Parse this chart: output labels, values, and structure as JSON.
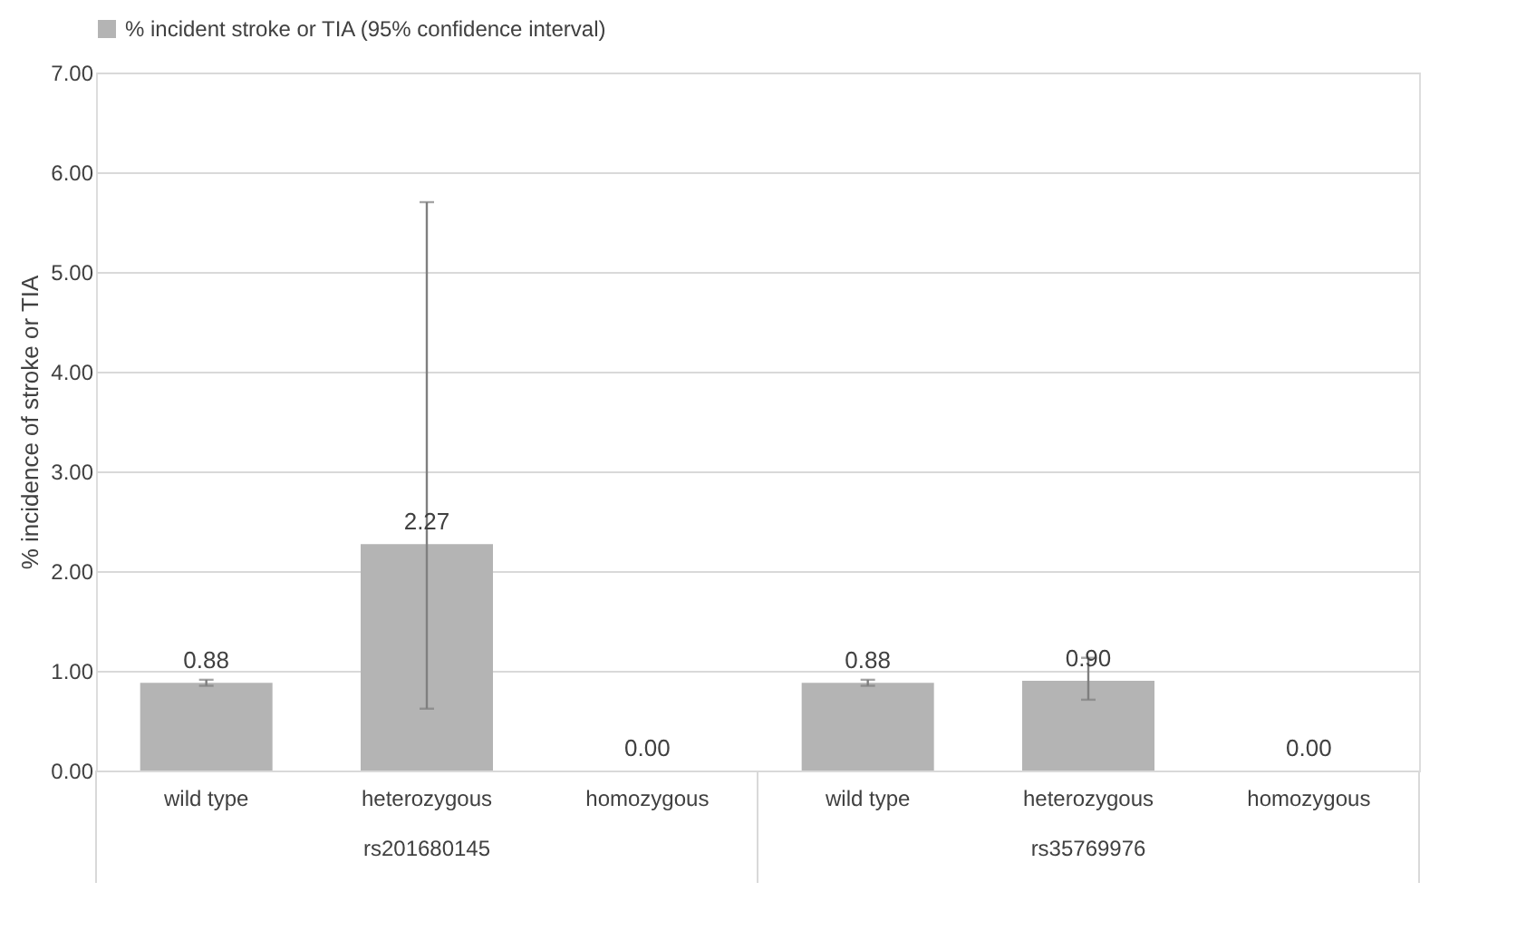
{
  "chart_data": {
    "type": "bar",
    "ylabel": "% incidence of stroke or TIA",
    "categories": [
      "wild type",
      "heterozygous",
      "homozygous",
      "wild type",
      "heterozygous",
      "homozygous"
    ],
    "series": [
      {
        "name": "% incident stroke or TIA (95% confidence interval)",
        "color": "#b4b4b4",
        "values": [
          0.88,
          2.27,
          0,
          0.88,
          0.9,
          0
        ],
        "errors": [
          [
            0.85,
            0.91
          ],
          [
            0.62,
            5.7
          ],
          null,
          [
            0.85,
            0.91
          ],
          [
            0.71,
            1.13
          ],
          null
        ],
        "value_labels": [
          "0.88",
          "2.27",
          "0.00",
          "0.88",
          "0.90",
          "0.00"
        ]
      }
    ],
    "ylim": [
      0,
      7
    ],
    "yticks": [
      {
        "value": 0,
        "label": "0.00"
      },
      {
        "value": 1,
        "label": "1.00"
      },
      {
        "value": 2,
        "label": "2.00"
      },
      {
        "value": 3,
        "label": "3.00"
      },
      {
        "value": 4,
        "label": "4.00"
      },
      {
        "value": 5,
        "label": "5.00"
      },
      {
        "value": 6,
        "label": "6.00"
      },
      {
        "value": 7,
        "label": "7.00"
      }
    ],
    "grid": "y",
    "legend": "top",
    "annotations": [
      "rs201680145",
      "rs35769976"
    ]
  }
}
